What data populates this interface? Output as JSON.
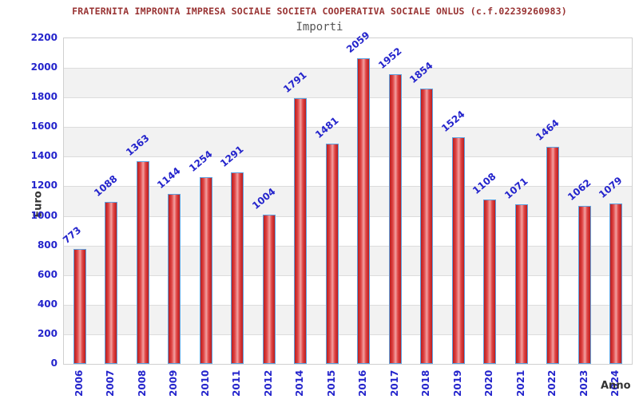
{
  "chart_data": {
    "type": "bar",
    "title": "FRATERNITA IMPRONTA IMPRESA SOCIALE SOCIETA COOPERATIVA SOCIALE ONLUS (c.f.02239260983)",
    "subtitle": "Importi",
    "xlabel": "Anno",
    "ylabel": "Euro",
    "categories": [
      "2006",
      "2007",
      "2008",
      "2009",
      "2010",
      "2011",
      "2012",
      "2014",
      "2015",
      "2016",
      "2017",
      "2018",
      "2019",
      "2020",
      "2021",
      "2022",
      "2023",
      "2024"
    ],
    "values": [
      773,
      1088,
      1363,
      1144,
      1254,
      1291,
      1004,
      1791,
      1481,
      2059,
      1952,
      1854,
      1524,
      1108,
      1071,
      1464,
      1062,
      1079
    ],
    "ylim": [
      0,
      2200
    ],
    "ytick_step": 200,
    "grid": "horizontal-bands-alternating",
    "legend": "none",
    "value_labels": "above-bars-rotated",
    "colors": {
      "title": "#993333",
      "subtitle": "#555555",
      "labels_blue": "#2424cc",
      "axis_titles": "#333333",
      "bar_border": "#5da2e0",
      "bar_dark": "#bb1d1d",
      "bar_mid": "#e04545",
      "bar_light": "#f2a0a0",
      "band_gray": "#f2f2f2",
      "gridline": "#dcdcdc",
      "plot_border": "#d0d0d0"
    }
  }
}
